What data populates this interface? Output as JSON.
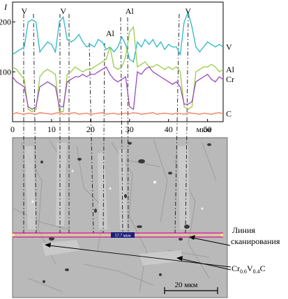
{
  "chart_data": {
    "type": "line",
    "ylabel": "I",
    "xunit": "мкм",
    "xlim": [
      0,
      54
    ],
    "ylim": [
      0,
      240
    ],
    "x_ticks": [
      0,
      10,
      20,
      30,
      40,
      50
    ],
    "y_ticks": [
      100,
      200
    ],
    "grid": false,
    "x": [
      0,
      1,
      2,
      3,
      4,
      5,
      6,
      7,
      8,
      9,
      10,
      11,
      12,
      13,
      14,
      15,
      16,
      17,
      18,
      19,
      20,
      21,
      22,
      23,
      24,
      25,
      26,
      27,
      28,
      29,
      30,
      31,
      32,
      33,
      34,
      35,
      36,
      37,
      38,
      39,
      40,
      41,
      42,
      43,
      44,
      45,
      46,
      47,
      48,
      49,
      50,
      51,
      52,
      53,
      54
    ],
    "series": [
      {
        "name": "V",
        "color": "#2cb7c9",
        "values": [
          135,
          140,
          145,
          150,
          200,
          205,
          200,
          140,
          150,
          160,
          155,
          140,
          200,
          210,
          165,
          160,
          165,
          175,
          160,
          150,
          155,
          150,
          165,
          160,
          145,
          150,
          140,
          150,
          170,
          155,
          125,
          120,
          160,
          150,
          165,
          155,
          165,
          150,
          160,
          145,
          155,
          150,
          150,
          135,
          200,
          220,
          190,
          150,
          140,
          150,
          160,
          155,
          150,
          155,
          150
        ]
      },
      {
        "name": "Al",
        "color": "#9acd4a",
        "values": [
          110,
          105,
          95,
          85,
          25,
          20,
          25,
          90,
          100,
          105,
          100,
          95,
          20,
          20,
          95,
          100,
          110,
          105,
          100,
          105,
          105,
          110,
          115,
          120,
          125,
          150,
          110,
          105,
          110,
          130,
          180,
          190,
          110,
          115,
          120,
          110,
          110,
          115,
          110,
          105,
          110,
          105,
          110,
          100,
          30,
          25,
          30,
          100,
          105,
          110,
          110,
          115,
          110,
          100,
          105
        ]
      },
      {
        "name": "Cr",
        "color": "#9b4bbd",
        "values": [
          90,
          80,
          75,
          70,
          30,
          25,
          30,
          70,
          75,
          80,
          75,
          70,
          30,
          30,
          80,
          85,
          90,
          90,
          95,
          90,
          95,
          95,
          100,
          105,
          110,
          95,
          85,
          80,
          85,
          90,
          30,
          25,
          100,
          95,
          105,
          110,
          100,
          95,
          90,
          85,
          80,
          75,
          80,
          70,
          35,
          35,
          40,
          80,
          85,
          90,
          95,
          85,
          80,
          90,
          85
        ]
      },
      {
        "name": "C",
        "color": "#f07a55",
        "values": [
          15,
          18,
          16,
          15,
          17,
          16,
          15,
          18,
          17,
          16,
          15,
          17,
          18,
          15,
          16,
          17,
          18,
          15,
          16,
          17,
          15,
          16,
          17,
          18,
          15,
          16,
          17,
          15,
          16,
          17,
          16,
          18,
          17,
          15,
          16,
          17,
          18,
          15,
          16,
          17,
          16,
          15,
          17,
          16,
          15,
          18,
          17,
          16,
          15,
          17,
          16,
          15,
          17,
          18,
          16
        ]
      }
    ],
    "annotations": [
      {
        "text": "V",
        "x": 3
      },
      {
        "text": "V",
        "x": 13
      },
      {
        "text": "Al",
        "x": 25
      },
      {
        "text": "Al",
        "x": 30
      },
      {
        "text": "V",
        "x": 45
      }
    ]
  },
  "image_panel": {
    "scale_readout": "57.7 мкм",
    "scale_bar": "20 мкм",
    "label_scan_line": [
      "Линия",
      "сканирования"
    ],
    "label_phase": {
      "base": "Cr",
      "sub1": "0.6",
      "mid": "V",
      "sub2": "0.4",
      "tail": "C"
    }
  },
  "colors": {
    "scan_line": "#e0319a",
    "scan_line_inner": "#ffe27a",
    "readout_bg": "#1f1f7a",
    "sem_bg": "#b9b9b9"
  }
}
